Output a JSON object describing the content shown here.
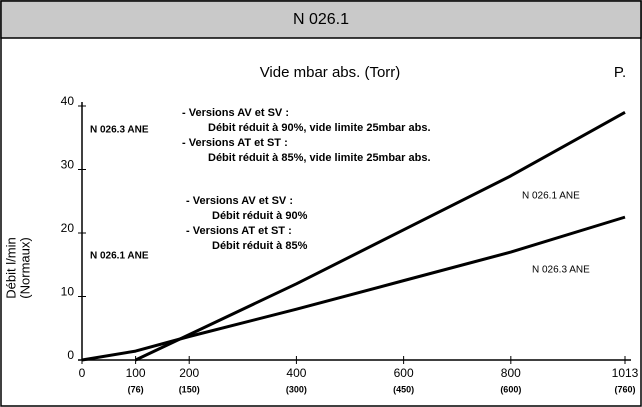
{
  "header": {
    "title": "N 026.1"
  },
  "chart_data": {
    "type": "line",
    "title": "Vide mbar abs. (Torr)",
    "page_label": "P.",
    "y_label": [
      "Débit l/min",
      "(Normaux)"
    ],
    "xlim": [
      0,
      1013
    ],
    "ylim": [
      0,
      40
    ],
    "xticks": [
      0,
      100,
      200,
      400,
      600,
      800,
      1013
    ],
    "x_secondary_ticks": [
      {
        "value": 100,
        "label": "(76)"
      },
      {
        "value": 200,
        "label": "(150)"
      },
      {
        "value": 400,
        "label": "(300)"
      },
      {
        "value": 600,
        "label": "(450)"
      },
      {
        "value": 800,
        "label": "(600)"
      },
      {
        "value": 1013,
        "label": "(760)"
      }
    ],
    "yticks": [
      0,
      10,
      20,
      30,
      40
    ],
    "series": [
      {
        "name": "N 026.1 ANE",
        "color": "#000000",
        "x": [
          100,
          200,
          400,
          600,
          800,
          1013
        ],
        "values": [
          0,
          4,
          12,
          20.5,
          29,
          39
        ]
      },
      {
        "name": "N 026.3 ANE",
        "color": "#000000",
        "x": [
          0,
          100,
          200,
          400,
          600,
          800,
          1013
        ],
        "values": [
          0,
          1.4,
          3.7,
          8,
          12.5,
          17,
          22.5
        ]
      }
    ],
    "annotations": [
      {
        "model": "N 026.3 ANE",
        "lines": [
          "- Versions AV et SV :",
          "Débit réduit à 90%, vide limite 25mbar abs.",
          "- Versions AT et ST :",
          "Débit réduit à 85%, vide limite 25mbar abs."
        ]
      },
      {
        "model": "N 026.1 ANE",
        "lines": [
          "- Versions AV et SV :",
          "Débit réduit à 90%",
          "- Versions AT et ST :",
          "Débit réduit à 85%"
        ]
      }
    ]
  }
}
